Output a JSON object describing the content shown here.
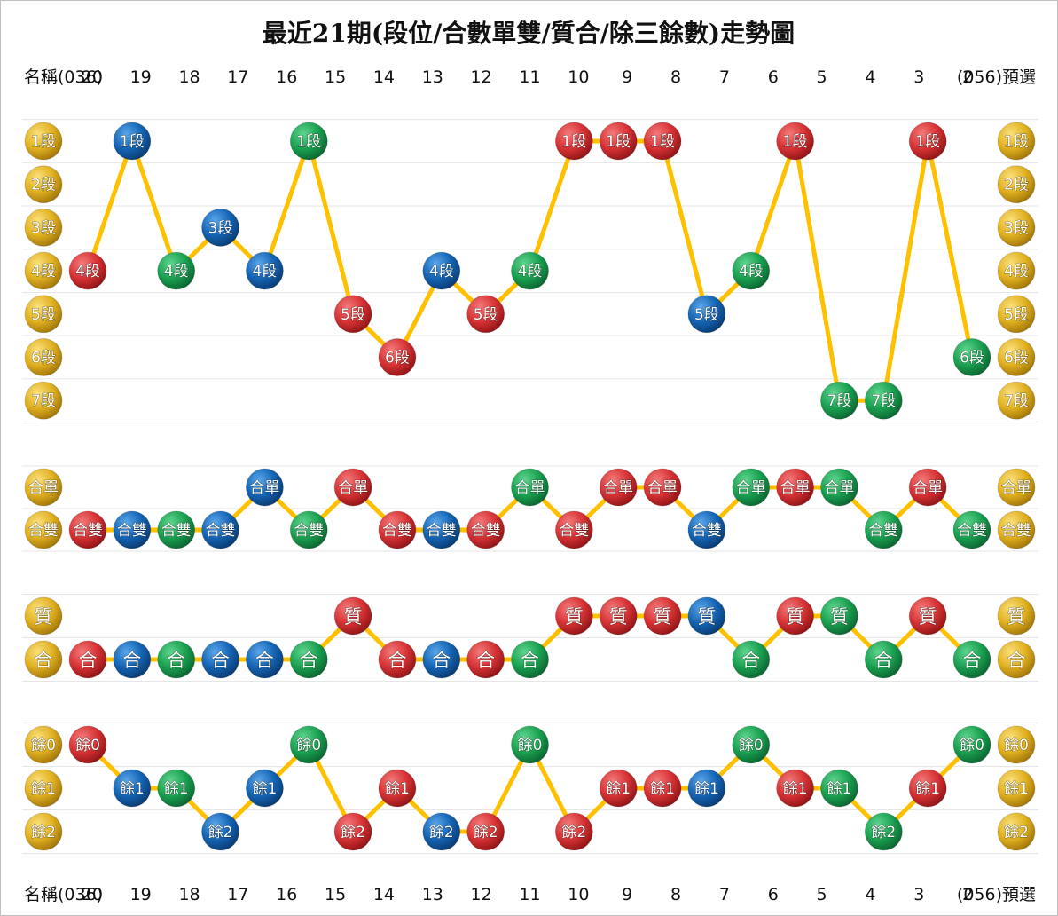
{
  "chart_data": {
    "type": "line",
    "title": "最近21期(段位/合數單雙/質合/除三餘數)走勢圖",
    "columns": [
      "名稱(036)",
      "20",
      "19",
      "18",
      "17",
      "16",
      "15",
      "14",
      "13",
      "12",
      "11",
      "10",
      "9",
      "8",
      "7",
      "6",
      "5",
      "4",
      "3",
      "2",
      "(056)預選"
    ],
    "left_label": "名稱(036)",
    "right_label": "(056)預選",
    "colors": {
      "red": "#d63234",
      "blue": "#1464b4",
      "green": "#1aa050",
      "gold": "#e0b020",
      "line": "#ffc000"
    },
    "sections": [
      {
        "name": "段位",
        "levels": [
          "1段",
          "2段",
          "3段",
          "4段",
          "5段",
          "6段",
          "7段"
        ],
        "points": [
          {
            "col": 0,
            "label": "4段",
            "color": "red"
          },
          {
            "col": 1,
            "label": "1段",
            "color": "blue"
          },
          {
            "col": 2,
            "label": "4段",
            "color": "green"
          },
          {
            "col": 3,
            "label": "3段",
            "color": "blue"
          },
          {
            "col": 4,
            "label": "4段",
            "color": "blue"
          },
          {
            "col": 5,
            "label": "1段",
            "color": "green"
          },
          {
            "col": 6,
            "label": "5段",
            "color": "red"
          },
          {
            "col": 7,
            "label": "6段",
            "color": "red"
          },
          {
            "col": 8,
            "label": "4段",
            "color": "blue"
          },
          {
            "col": 9,
            "label": "5段",
            "color": "red"
          },
          {
            "col": 10,
            "label": "4段",
            "color": "green"
          },
          {
            "col": 11,
            "label": "1段",
            "color": "red"
          },
          {
            "col": 12,
            "label": "1段",
            "color": "red"
          },
          {
            "col": 13,
            "label": "1段",
            "color": "red"
          },
          {
            "col": 14,
            "label": "5段",
            "color": "blue"
          },
          {
            "col": 15,
            "label": "4段",
            "color": "green"
          },
          {
            "col": 16,
            "label": "1段",
            "color": "red"
          },
          {
            "col": 17,
            "label": "7段",
            "color": "green"
          },
          {
            "col": 18,
            "label": "7段",
            "color": "green"
          },
          {
            "col": 19,
            "label": "1段",
            "color": "red"
          },
          {
            "col": 20,
            "label": "6段",
            "color": "green"
          }
        ]
      },
      {
        "name": "合數單雙",
        "levels": [
          "合單",
          "合雙"
        ],
        "points": [
          {
            "col": 0,
            "label": "合雙",
            "color": "red"
          },
          {
            "col": 1,
            "label": "合雙",
            "color": "blue"
          },
          {
            "col": 2,
            "label": "合雙",
            "color": "green"
          },
          {
            "col": 3,
            "label": "合雙",
            "color": "blue"
          },
          {
            "col": 4,
            "label": "合單",
            "color": "blue"
          },
          {
            "col": 5,
            "label": "合雙",
            "color": "green"
          },
          {
            "col": 6,
            "label": "合單",
            "color": "red"
          },
          {
            "col": 7,
            "label": "合雙",
            "color": "red"
          },
          {
            "col": 8,
            "label": "合雙",
            "color": "blue"
          },
          {
            "col": 9,
            "label": "合雙",
            "color": "red"
          },
          {
            "col": 10,
            "label": "合單",
            "color": "green"
          },
          {
            "col": 11,
            "label": "合雙",
            "color": "red"
          },
          {
            "col": 12,
            "label": "合單",
            "color": "red"
          },
          {
            "col": 13,
            "label": "合單",
            "color": "red"
          },
          {
            "col": 14,
            "label": "合雙",
            "color": "blue"
          },
          {
            "col": 15,
            "label": "合單",
            "color": "green"
          },
          {
            "col": 16,
            "label": "合單",
            "color": "red"
          },
          {
            "col": 17,
            "label": "合單",
            "color": "green"
          },
          {
            "col": 18,
            "label": "合雙",
            "color": "green"
          },
          {
            "col": 19,
            "label": "合單",
            "color": "red"
          },
          {
            "col": 20,
            "label": "合雙",
            "color": "green"
          }
        ]
      },
      {
        "name": "質合",
        "levels": [
          "質",
          "合"
        ],
        "points": [
          {
            "col": 0,
            "label": "合",
            "color": "red"
          },
          {
            "col": 1,
            "label": "合",
            "color": "blue"
          },
          {
            "col": 2,
            "label": "合",
            "color": "green"
          },
          {
            "col": 3,
            "label": "合",
            "color": "blue"
          },
          {
            "col": 4,
            "label": "合",
            "color": "blue"
          },
          {
            "col": 5,
            "label": "合",
            "color": "green"
          },
          {
            "col": 6,
            "label": "質",
            "color": "red"
          },
          {
            "col": 7,
            "label": "合",
            "color": "red"
          },
          {
            "col": 8,
            "label": "合",
            "color": "blue"
          },
          {
            "col": 9,
            "label": "合",
            "color": "red"
          },
          {
            "col": 10,
            "label": "合",
            "color": "green"
          },
          {
            "col": 11,
            "label": "質",
            "color": "red"
          },
          {
            "col": 12,
            "label": "質",
            "color": "red"
          },
          {
            "col": 13,
            "label": "質",
            "color": "red"
          },
          {
            "col": 14,
            "label": "質",
            "color": "blue"
          },
          {
            "col": 15,
            "label": "合",
            "color": "green"
          },
          {
            "col": 16,
            "label": "質",
            "color": "red"
          },
          {
            "col": 17,
            "label": "質",
            "color": "green"
          },
          {
            "col": 18,
            "label": "合",
            "color": "green"
          },
          {
            "col": 19,
            "label": "質",
            "color": "red"
          },
          {
            "col": 20,
            "label": "合",
            "color": "green"
          }
        ]
      },
      {
        "name": "除三餘數",
        "levels": [
          "餘0",
          "餘1",
          "餘2"
        ],
        "points": [
          {
            "col": 0,
            "label": "餘0",
            "color": "red"
          },
          {
            "col": 1,
            "label": "餘1",
            "color": "blue"
          },
          {
            "col": 2,
            "label": "餘1",
            "color": "green"
          },
          {
            "col": 3,
            "label": "餘2",
            "color": "blue"
          },
          {
            "col": 4,
            "label": "餘1",
            "color": "blue"
          },
          {
            "col": 5,
            "label": "餘0",
            "color": "green"
          },
          {
            "col": 6,
            "label": "餘2",
            "color": "red"
          },
          {
            "col": 7,
            "label": "餘1",
            "color": "red"
          },
          {
            "col": 8,
            "label": "餘2",
            "color": "blue"
          },
          {
            "col": 9,
            "label": "餘2",
            "color": "red"
          },
          {
            "col": 10,
            "label": "餘0",
            "color": "green"
          },
          {
            "col": 11,
            "label": "餘2",
            "color": "red"
          },
          {
            "col": 12,
            "label": "餘1",
            "color": "red"
          },
          {
            "col": 13,
            "label": "餘1",
            "color": "red"
          },
          {
            "col": 14,
            "label": "餘1",
            "color": "blue"
          },
          {
            "col": 15,
            "label": "餘0",
            "color": "green"
          },
          {
            "col": 16,
            "label": "餘1",
            "color": "red"
          },
          {
            "col": 17,
            "label": "餘1",
            "color": "green"
          },
          {
            "col": 18,
            "label": "餘2",
            "color": "green"
          },
          {
            "col": 19,
            "label": "餘1",
            "color": "red"
          },
          {
            "col": 20,
            "label": "餘0",
            "color": "green"
          }
        ]
      }
    ]
  }
}
